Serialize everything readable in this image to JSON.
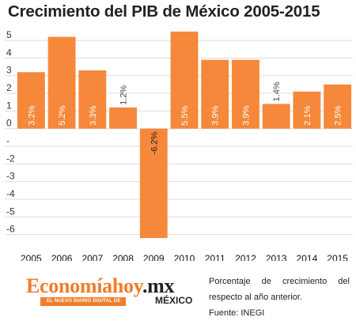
{
  "chart_data": {
    "type": "bar",
    "title": "Crecimiento del PIB de México 2005-2015",
    "categories": [
      "2005",
      "2006",
      "2007",
      "2008",
      "2009",
      "2010",
      "2011",
      "2012",
      "2013",
      "2014",
      "2015"
    ],
    "values": [
      3.2,
      5.2,
      3.3,
      1.2,
      -6.2,
      5.5,
      3.9,
      3.9,
      1.4,
      2.1,
      2.5
    ],
    "labels": [
      "3.2%",
      "5.2%",
      "3.3%",
      "1.2%",
      "-6.2%",
      "5.5%",
      "3.9%",
      "3.9%",
      "1.4%",
      "2.1%",
      "2.5%"
    ],
    "yticks": [
      5,
      4,
      3,
      2,
      1,
      0,
      -1,
      -2,
      -3,
      -4,
      -5,
      -6
    ],
    "ytick_labels": [
      "5",
      "4",
      "3",
      "2",
      "1",
      "0",
      "-",
      "-2",
      "-3",
      "-4",
      "-5",
      "-6"
    ],
    "ylim": [
      -6.6,
      5.9
    ],
    "xlabel": "",
    "ylabel": "",
    "grid": true,
    "bar_color": "#f5883a",
    "grid_color": "#dddddd"
  },
  "footer": {
    "logo": {
      "part1": "Economía",
      "part2": "hoy",
      "part3": ".mx",
      "tagline": "EL NUEVO DIARIO DIGITAL DE",
      "country": "MÉXICO"
    },
    "note": "Porcentaje de crecimiento del respecto al año anterior.",
    "source": "Fuente: INEGI"
  }
}
